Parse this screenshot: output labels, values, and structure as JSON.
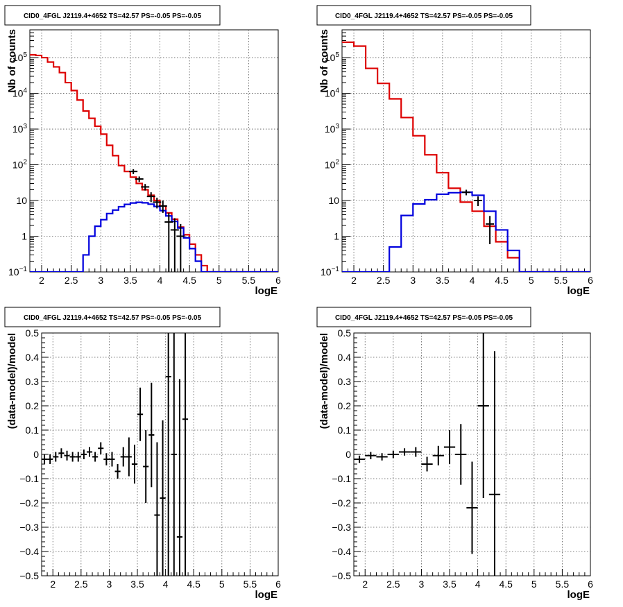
{
  "colors": {
    "data": "#000000",
    "total_model": "#dd0000",
    "source_model": "#0000dd",
    "grid": "#555555"
  },
  "chart_data": [
    {
      "id": "counts-left",
      "type": "line",
      "title": "CID0_4FGL J2119.4+4652 TS=42.57 PS=-0.05 PS=-0.05",
      "xlabel": "logE",
      "ylabel": "Nb of counts",
      "xlim": [
        1.8,
        6.0
      ],
      "ylim": [
        0.1,
        600000
      ],
      "yscale": "log",
      "grid": true,
      "xticks": [
        2,
        2.5,
        3,
        3.5,
        4,
        4.5,
        5,
        5.5,
        6
      ],
      "xtick_labels": [
        "2",
        "2.5",
        "3",
        "3.5",
        "4",
        "4.5",
        "5",
        "5.5",
        "6"
      ],
      "yticks": [
        0.1,
        1,
        10,
        100,
        1000,
        10000,
        100000
      ],
      "ytick_labels": [
        {
          "base": "10",
          "exp": "−1"
        },
        {
          "base": "1",
          "exp": ""
        },
        {
          "base": "10",
          "exp": ""
        },
        {
          "base": "10",
          "exp": "2"
        },
        {
          "base": "10",
          "exp": "3"
        },
        {
          "base": "10",
          "exp": "4"
        },
        {
          "base": "10",
          "exp": "5"
        }
      ],
      "bin_edges": [
        1.8,
        1.9,
        2.0,
        2.1,
        2.2,
        2.3,
        2.4,
        2.5,
        2.6,
        2.7,
        2.8,
        2.9,
        3.0,
        3.1,
        3.2,
        3.3,
        3.4,
        3.5,
        3.6,
        3.7,
        3.8,
        3.9,
        4.0,
        4.1,
        4.2,
        4.3,
        4.4,
        4.5,
        4.6,
        4.7,
        4.8,
        4.9,
        5.0,
        5.1,
        5.2,
        5.3,
        5.4,
        5.5,
        5.6,
        5.7,
        5.8,
        5.9,
        6.0
      ],
      "series": [
        {
          "name": "",
          "color_key": "total_model",
          "style": "step",
          "values": [
            120000,
            115000,
            100000,
            75000,
            55000,
            38000,
            20000,
            12000,
            6500,
            3200,
            2000,
            1200,
            720,
            350,
            180,
            95,
            65,
            45,
            30,
            20,
            14,
            10,
            7,
            4.5,
            3,
            1.8,
            1.1,
            0.6,
            0.3,
            0.15,
            0.1,
            0.1,
            0.1,
            0.1,
            0.1,
            0.1,
            0.1,
            0.1,
            0.1,
            0.1,
            0.1,
            0.1
          ]
        },
        {
          "name": "",
          "color_key": "source_model",
          "style": "step",
          "values": [
            0.1,
            0.1,
            0.1,
            0.1,
            0.1,
            0.1,
            0.1,
            0.1,
            0.1,
            0.3,
            1.0,
            1.9,
            2.9,
            4.3,
            5.4,
            6.7,
            7.8,
            8.5,
            8.9,
            8.6,
            7.9,
            6.8,
            5.2,
            3.7,
            2.6,
            1.7,
            0.9,
            0.45,
            0.2,
            0.1,
            0.1,
            0.1,
            0.1,
            0.1,
            0.1,
            0.1,
            0.1,
            0.1,
            0.1,
            0.1,
            0.1,
            0.1
          ]
        }
      ],
      "points": [
        {
          "x": 3.55,
          "y": 65,
          "lo": 55,
          "hi": 75
        },
        {
          "x": 3.65,
          "y": 40,
          "lo": 33,
          "hi": 47
        },
        {
          "x": 3.75,
          "y": 24,
          "lo": 19,
          "hi": 29
        },
        {
          "x": 3.85,
          "y": 13,
          "lo": 9,
          "hi": 17
        },
        {
          "x": 3.95,
          "y": 9,
          "lo": 6,
          "hi": 12
        },
        {
          "x": 4.05,
          "y": 7,
          "lo": 4.5,
          "hi": 10
        },
        {
          "x": 4.15,
          "y": 2.5,
          "lo": 0.1,
          "hi": 4.5
        },
        {
          "x": 4.25,
          "y": 1.5,
          "lo": 0.1,
          "hi": 3.2
        },
        {
          "x": 4.35,
          "y": 1.0,
          "lo": 0.1,
          "hi": 2.2
        }
      ]
    },
    {
      "id": "counts-right",
      "type": "line",
      "title": "CID0_4FGL J2119.4+4652 TS=42.57 PS=-0.05 PS=-0.05",
      "xlabel": "logE",
      "ylabel": "Nb of counts",
      "xlim": [
        1.8,
        6.0
      ],
      "ylim": [
        0.1,
        600000
      ],
      "yscale": "log",
      "grid": true,
      "xticks": [
        2,
        2.5,
        3,
        3.5,
        4,
        4.5,
        5,
        5.5,
        6
      ],
      "xtick_labels": [
        "2",
        "2.5",
        "3",
        "3.5",
        "4",
        "4.5",
        "5",
        "5.5",
        "6"
      ],
      "yticks": [
        0.1,
        1,
        10,
        100,
        1000,
        10000,
        100000
      ],
      "ytick_labels": [
        {
          "base": "10",
          "exp": "−1"
        },
        {
          "base": "1",
          "exp": ""
        },
        {
          "base": "10",
          "exp": ""
        },
        {
          "base": "10",
          "exp": "2"
        },
        {
          "base": "10",
          "exp": "3"
        },
        {
          "base": "10",
          "exp": "4"
        },
        {
          "base": "10",
          "exp": "5"
        }
      ],
      "bin_edges": [
        1.8,
        2.0,
        2.2,
        2.4,
        2.6,
        2.8,
        3.0,
        3.2,
        3.4,
        3.6,
        3.8,
        4.0,
        4.2,
        4.4,
        4.6,
        4.8,
        5.0,
        5.2,
        5.4,
        5.6,
        5.8,
        6.0
      ],
      "series": [
        {
          "name": "",
          "color_key": "total_model",
          "style": "step",
          "values": [
            270000,
            210000,
            50000,
            19000,
            7000,
            2100,
            650,
            190,
            60,
            22,
            9,
            5,
            1.9,
            0.7,
            0.25,
            0.1,
            0.1,
            0.1,
            0.1,
            0.1,
            0.1
          ]
        },
        {
          "name": "",
          "color_key": "source_model",
          "style": "step",
          "values": [
            0.1,
            0.1,
            0.1,
            0.1,
            0.5,
            3.8,
            8.0,
            10.5,
            15.0,
            16.5,
            17.0,
            14.0,
            5.0,
            1.5,
            0.4,
            0.1,
            0.1,
            0.1,
            0.1,
            0.1,
            0.1
          ]
        }
      ],
      "points": [
        {
          "x": 3.9,
          "y": 17,
          "lo": 14,
          "hi": 20
        },
        {
          "x": 4.1,
          "y": 10,
          "lo": 7,
          "hi": 13
        },
        {
          "x": 4.3,
          "y": 2.2,
          "lo": 0.6,
          "hi": 3.7
        }
      ]
    },
    {
      "id": "residual-left",
      "type": "scatter",
      "title": "CID0_4FGL J2119.4+4652 TS=42.57 PS=-0.05 PS=-0.05",
      "xlabel": "logE",
      "ylabel": "(data-model)/model",
      "xlim": [
        1.8,
        6.0
      ],
      "ylim": [
        -0.5,
        0.5
      ],
      "yscale": "linear",
      "grid": true,
      "xticks": [
        2,
        2.5,
        3,
        3.5,
        4,
        4.5,
        5,
        5.5,
        6
      ],
      "xtick_labels": [
        "2",
        "2.5",
        "3",
        "3.5",
        "4",
        "4.5",
        "5",
        "5.5",
        "6"
      ],
      "yticks": [
        -0.5,
        -0.4,
        -0.3,
        -0.2,
        -0.1,
        0,
        0.1,
        0.2,
        0.3,
        0.4,
        0.5
      ],
      "ytick_labels": [
        "−0.5",
        "−0.4",
        "−0.3",
        "−0.2",
        "−0.1",
        "0",
        "0.1",
        "0.2",
        "0.3",
        "0.4",
        "0.5"
      ],
      "xerr": 0.05,
      "points": [
        {
          "x": 1.85,
          "y": -0.02,
          "err": 0.02
        },
        {
          "x": 1.95,
          "y": -0.02,
          "err": 0.02
        },
        {
          "x": 2.05,
          "y": -0.01,
          "err": 0.02
        },
        {
          "x": 2.15,
          "y": 0.005,
          "err": 0.02
        },
        {
          "x": 2.25,
          "y": -0.005,
          "err": 0.02
        },
        {
          "x": 2.35,
          "y": -0.01,
          "err": 0.02
        },
        {
          "x": 2.45,
          "y": -0.01,
          "err": 0.02
        },
        {
          "x": 2.55,
          "y": 0.0,
          "err": 0.02
        },
        {
          "x": 2.65,
          "y": 0.01,
          "err": 0.02
        },
        {
          "x": 2.75,
          "y": -0.01,
          "err": 0.02
        },
        {
          "x": 2.85,
          "y": 0.025,
          "err": 0.025
        },
        {
          "x": 2.95,
          "y": -0.02,
          "err": 0.025
        },
        {
          "x": 3.05,
          "y": -0.02,
          "err": 0.03
        },
        {
          "x": 3.15,
          "y": -0.07,
          "err": 0.03
        },
        {
          "x": 3.25,
          "y": -0.01,
          "err": 0.04
        },
        {
          "x": 3.35,
          "y": -0.01,
          "err": 0.08
        },
        {
          "x": 3.45,
          "y": -0.04,
          "err": 0.08
        },
        {
          "x": 3.55,
          "y": 0.165,
          "err": 0.11
        },
        {
          "x": 3.65,
          "y": -0.05,
          "err": 0.15
        },
        {
          "x": 3.75,
          "y": 0.08,
          "err": 0.215
        },
        {
          "x": 3.85,
          "y": -0.25,
          "err": 0.3
        },
        {
          "x": 3.95,
          "y": -0.18,
          "err": 0.32
        },
        {
          "x": 4.05,
          "y": 0.32,
          "err": 0.9
        },
        {
          "x": 4.15,
          "y": 0.0,
          "err": 0.9
        },
        {
          "x": 4.25,
          "y": -0.34,
          "err": 0.65
        },
        {
          "x": 4.35,
          "y": 0.145,
          "err": 0.9
        }
      ]
    },
    {
      "id": "residual-right",
      "type": "scatter",
      "title": "CID0_4FGL J2119.4+4652 TS=42.57 PS=-0.05 PS=-0.05",
      "xlabel": "logE",
      "ylabel": "(data-model)/model",
      "xlim": [
        1.8,
        6.0
      ],
      "ylim": [
        -0.5,
        0.5
      ],
      "yscale": "linear",
      "grid": true,
      "xticks": [
        2,
        2.5,
        3,
        3.5,
        4,
        4.5,
        5,
        5.5,
        6
      ],
      "xtick_labels": [
        "2",
        "2.5",
        "3",
        "3.5",
        "4",
        "4.5",
        "5",
        "5.5",
        "6"
      ],
      "yticks": [
        -0.5,
        -0.4,
        -0.3,
        -0.2,
        -0.1,
        0,
        0.1,
        0.2,
        0.3,
        0.4,
        0.5
      ],
      "ytick_labels": [
        "−0.5",
        "−0.4",
        "−0.3",
        "−0.2",
        "−0.1",
        "0",
        "0.1",
        "0.2",
        "0.3",
        "0.4",
        "0.5"
      ],
      "xerr": 0.1,
      "points": [
        {
          "x": 1.9,
          "y": -0.02,
          "err": 0.015
        },
        {
          "x": 2.1,
          "y": -0.005,
          "err": 0.015
        },
        {
          "x": 2.3,
          "y": -0.01,
          "err": 0.015
        },
        {
          "x": 2.5,
          "y": 0.0,
          "err": 0.015
        },
        {
          "x": 2.7,
          "y": 0.01,
          "err": 0.015
        },
        {
          "x": 2.9,
          "y": 0.01,
          "err": 0.02
        },
        {
          "x": 3.1,
          "y": -0.04,
          "err": 0.03
        },
        {
          "x": 3.3,
          "y": -0.005,
          "err": 0.04
        },
        {
          "x": 3.5,
          "y": 0.03,
          "err": 0.07
        },
        {
          "x": 3.7,
          "y": 0.0,
          "err": 0.125
        },
        {
          "x": 3.9,
          "y": -0.22,
          "err": 0.19
        },
        {
          "x": 4.1,
          "y": 0.2,
          "err": 0.38
        },
        {
          "x": 4.3,
          "y": -0.165,
          "err": 0.59
        }
      ]
    }
  ]
}
